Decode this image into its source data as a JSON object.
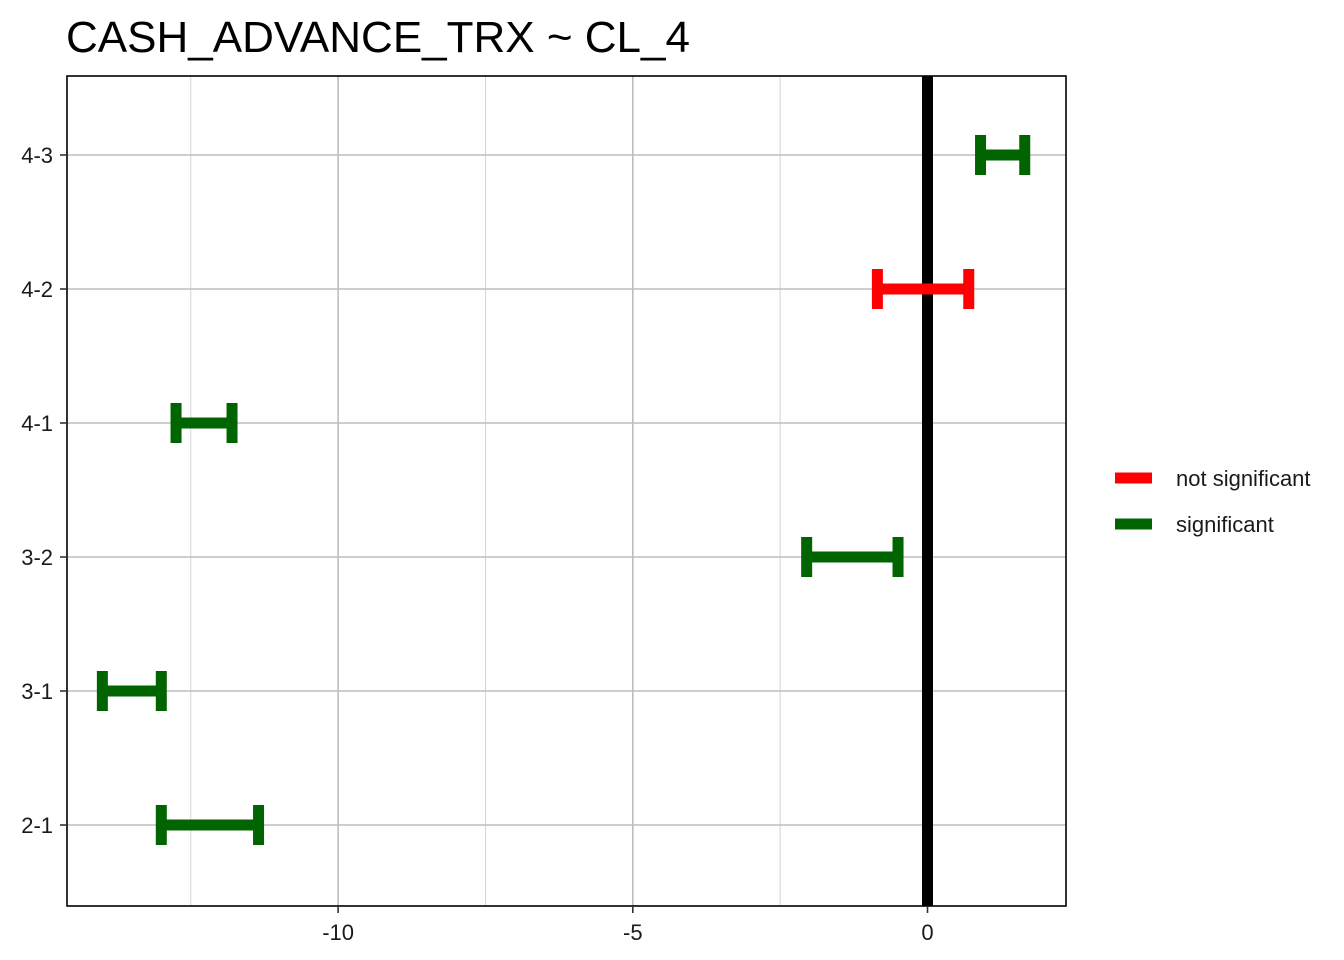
{
  "chart_data": {
    "type": "errorbar",
    "title": "CASH_ADVANCE_TRX  ~ CL_4",
    "xlabel": "",
    "ylabel": "",
    "xlim": [
      -14.6,
      2.35
    ],
    "x_ticks": [
      -10,
      -5,
      0
    ],
    "x_tick_labels": [
      "-10",
      "-5",
      "0"
    ],
    "x_minor_gridlines": [
      -12.5,
      -7.5,
      -2.5
    ],
    "categories": [
      "2-1",
      "3-1",
      "3-2",
      "4-1",
      "4-2",
      "4-3"
    ],
    "reference_line": 0,
    "grid": true,
    "legend_position": "right",
    "legend": [
      {
        "label": "not significant",
        "color": "#ff0000"
      },
      {
        "label": "significant",
        "color": "#006400"
      }
    ],
    "intervals": [
      {
        "comparison": "2-1",
        "lower": -13.0,
        "upper": -11.35,
        "group": "significant"
      },
      {
        "comparison": "3-1",
        "lower": -14.0,
        "upper": -13.0,
        "group": "significant"
      },
      {
        "comparison": "3-2",
        "lower": -2.05,
        "upper": -0.5,
        "group": "significant"
      },
      {
        "comparison": "4-1",
        "lower": -12.75,
        "upper": -11.8,
        "group": "significant"
      },
      {
        "comparison": "4-2",
        "lower": -0.85,
        "upper": 0.7,
        "group": "not significant"
      },
      {
        "comparison": "4-3",
        "lower": 0.9,
        "upper": 1.65,
        "group": "significant"
      }
    ]
  }
}
